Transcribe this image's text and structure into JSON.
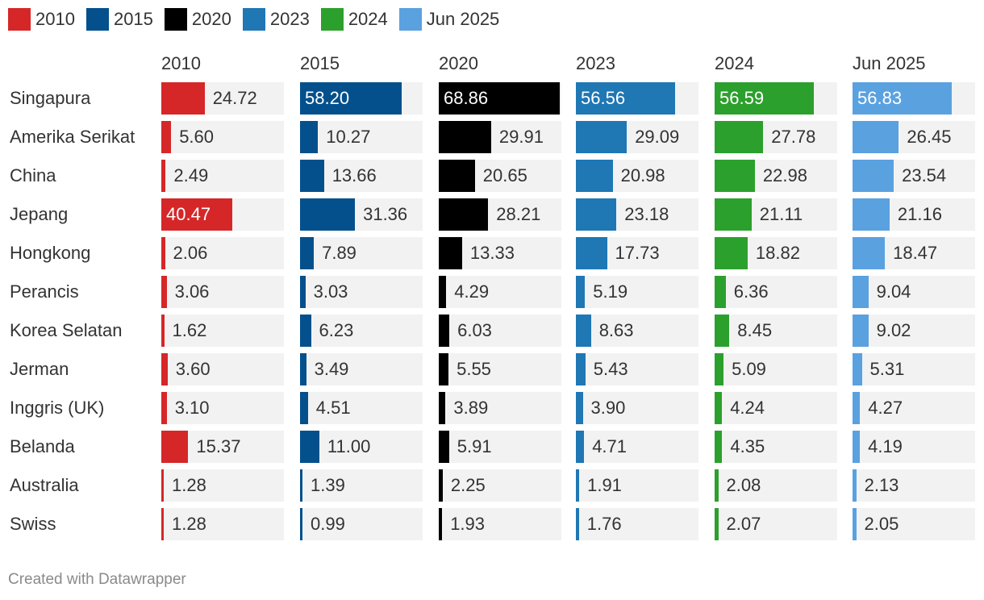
{
  "chart_data": {
    "type": "bar",
    "layout": "small-multiples",
    "series": [
      {
        "name": "2010",
        "color": "#d62728",
        "values": [
          24.72,
          5.6,
          2.49,
          40.47,
          2.06,
          3.06,
          1.62,
          3.6,
          3.1,
          15.37,
          1.28,
          1.28
        ]
      },
      {
        "name": "2015",
        "color": "#03508c",
        "values": [
          58.2,
          10.27,
          13.66,
          31.36,
          7.89,
          3.03,
          6.23,
          3.49,
          4.51,
          11.0,
          1.39,
          0.99
        ]
      },
      {
        "name": "2020",
        "color": "#000000",
        "values": [
          68.86,
          29.91,
          20.65,
          28.21,
          13.33,
          4.29,
          6.03,
          5.55,
          3.89,
          5.91,
          2.25,
          1.93
        ]
      },
      {
        "name": "2023",
        "color": "#1f77b4",
        "values": [
          56.56,
          29.09,
          20.98,
          23.18,
          17.73,
          5.19,
          8.63,
          5.43,
          3.9,
          4.71,
          1.91,
          1.76
        ]
      },
      {
        "name": "2024",
        "color": "#2ca02c",
        "values": [
          56.59,
          27.78,
          22.98,
          21.11,
          18.82,
          6.36,
          8.45,
          5.09,
          4.24,
          4.35,
          2.08,
          2.07
        ]
      },
      {
        "name": "Jun 2025",
        "color": "#5aa1e0",
        "values": [
          56.83,
          26.45,
          23.54,
          21.16,
          18.47,
          9.04,
          9.02,
          5.31,
          4.27,
          4.19,
          2.13,
          2.05
        ]
      }
    ],
    "categories": [
      "Singapura",
      "Amerika Serikat",
      "China",
      "Jepang",
      "Hongkong",
      "Perancis",
      "Korea Selatan",
      "Jerman",
      "Inggris (UK)",
      "Belanda",
      "Australia",
      "Swiss"
    ],
    "xlim": [
      0,
      70
    ],
    "value_format": "0.00"
  },
  "footer": "Created with Datawrapper"
}
